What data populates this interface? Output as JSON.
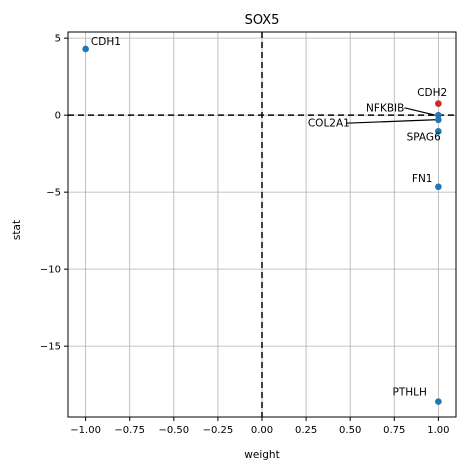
{
  "chart_data": {
    "type": "scatter",
    "title": "SOX5",
    "xlabel": "weight",
    "ylabel": "stat",
    "xlim": [
      -1.1,
      1.1
    ],
    "ylim": [
      -19.6,
      5.4
    ],
    "xticks": [
      -1.0,
      -0.75,
      -0.5,
      -0.25,
      0.0,
      0.25,
      0.5,
      0.75,
      1.0
    ],
    "xtick_labels": [
      "−1.00",
      "−0.75",
      "−0.50",
      "−0.25",
      "0.00",
      "0.25",
      "0.50",
      "0.75",
      "1.00"
    ],
    "yticks": [
      5,
      0,
      -5,
      -10,
      -15
    ],
    "ytick_labels": [
      "5",
      "0",
      "−5",
      "−10",
      "−15"
    ],
    "grid": true,
    "reference_lines": {
      "x": 0,
      "y": 0,
      "style": "dashed",
      "color": "#000000"
    },
    "colors": {
      "default": "#1f77b4",
      "highlight": "#d62728"
    },
    "points": [
      {
        "label": "CDH1",
        "x": -1.0,
        "y": 4.3,
        "color": "#1f77b4",
        "label_x": -0.97,
        "label_y": 4.55
      },
      {
        "label": "CDH2",
        "x": 1.0,
        "y": 0.75,
        "color": "#d62728",
        "label_x": 0.88,
        "label_y": 1.25
      },
      {
        "label": "NFKBIB",
        "x": 1.0,
        "y": 0.0,
        "color": "#1f77b4",
        "label_x": 0.59,
        "label_y": 0.25,
        "arrow": true
      },
      {
        "label": "COL2A1",
        "x": 1.0,
        "y": -0.3,
        "color": "#1f77b4",
        "label_x": 0.26,
        "label_y": -0.75,
        "arrow": true
      },
      {
        "label": "SPAG6",
        "x": 1.0,
        "y": -1.05,
        "color": "#1f77b4",
        "label_x": 0.82,
        "label_y": -1.65
      },
      {
        "label": "FN1",
        "x": 1.0,
        "y": -4.65,
        "color": "#1f77b4",
        "label_x": 0.85,
        "label_y": -4.35
      },
      {
        "label": "PTHLH",
        "x": 1.0,
        "y": -18.6,
        "color": "#1f77b4",
        "label_x": 0.74,
        "label_y": -18.2
      }
    ]
  }
}
